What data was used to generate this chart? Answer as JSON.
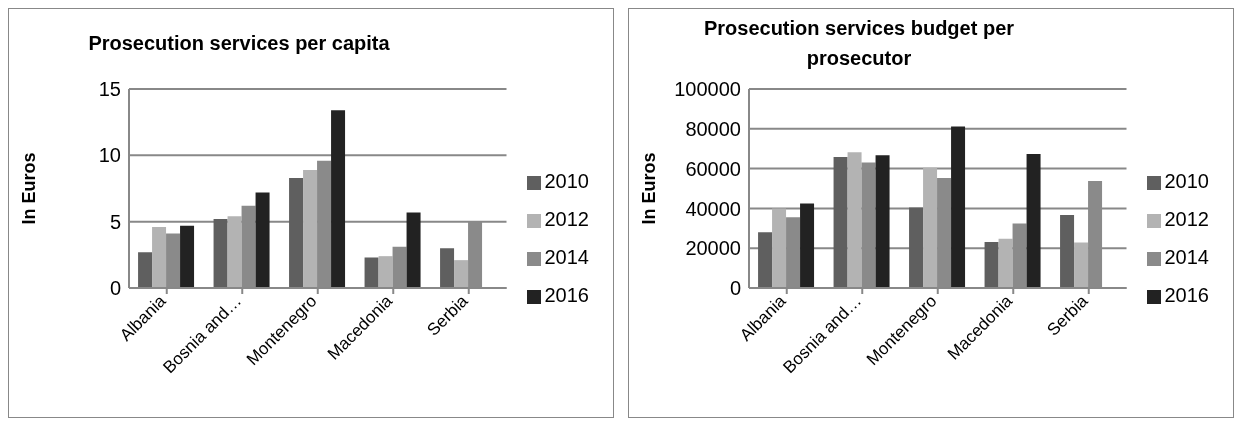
{
  "chart_data": [
    {
      "type": "bar",
      "title": "Prosecution services per capita",
      "ylabel": "In Euros",
      "categories": [
        "Albania",
        "Bosnia and…",
        "Montenegro",
        "Macedonia",
        "Serbia"
      ],
      "series": [
        {
          "name": "2010",
          "color": "#5f5f5f",
          "values": [
            2.7,
            5.2,
            8.3,
            2.3,
            3.0
          ]
        },
        {
          "name": "2012",
          "color": "#b3b3b3",
          "values": [
            4.6,
            5.4,
            8.9,
            2.4,
            2.1
          ]
        },
        {
          "name": "2014",
          "color": "#8a8a8a",
          "values": [
            4.1,
            6.2,
            9.6,
            3.1,
            5.0
          ]
        },
        {
          "name": "2016",
          "color": "#222222",
          "values": [
            4.7,
            7.2,
            13.4,
            5.7,
            null
          ]
        }
      ],
      "ylim": [
        0,
        15
      ],
      "yticks": [
        0,
        5,
        10,
        15
      ],
      "grid": "y",
      "legend": "right"
    },
    {
      "type": "bar",
      "title": "Prosecution services budget per prosecutor",
      "ylabel": "In Euros",
      "categories": [
        "Albania",
        "Bosnia and…",
        "Montenegro",
        "Macedonia",
        "Serbia"
      ],
      "series": [
        {
          "name": "2010",
          "color": "#5f5f5f",
          "values": [
            28000,
            65800,
            40400,
            23100,
            36700
          ]
        },
        {
          "name": "2012",
          "color": "#b3b3b3",
          "values": [
            40000,
            68200,
            60400,
            24700,
            22900
          ]
        },
        {
          "name": "2014",
          "color": "#8a8a8a",
          "values": [
            35600,
            63100,
            55300,
            32400,
            53800
          ]
        },
        {
          "name": "2016",
          "color": "#222222",
          "values": [
            42400,
            66700,
            81100,
            67300,
            null
          ]
        }
      ],
      "ylim": [
        0,
        100000
      ],
      "yticks": [
        0,
        20000,
        40000,
        60000,
        80000,
        100000
      ],
      "grid": "y",
      "legend": "right"
    }
  ]
}
